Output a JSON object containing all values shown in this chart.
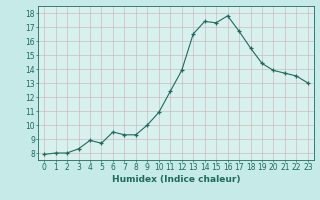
{
  "x": [
    0,
    1,
    2,
    3,
    4,
    5,
    6,
    7,
    8,
    9,
    10,
    11,
    12,
    13,
    14,
    15,
    16,
    17,
    18,
    19,
    20,
    21,
    22,
    23
  ],
  "y": [
    7.9,
    8.0,
    8.0,
    8.3,
    8.9,
    8.7,
    9.5,
    9.3,
    9.3,
    10.0,
    10.9,
    12.4,
    13.9,
    16.5,
    17.4,
    17.3,
    17.8,
    16.7,
    15.5,
    14.4,
    13.9,
    13.7,
    13.5,
    13.0
  ],
  "xlabel": "Humidex (Indice chaleur)",
  "xlim": [
    -0.5,
    23.5
  ],
  "ylim": [
    7.5,
    18.5
  ],
  "yticks": [
    8,
    9,
    10,
    11,
    12,
    13,
    14,
    15,
    16,
    17,
    18
  ],
  "xticks": [
    0,
    1,
    2,
    3,
    4,
    5,
    6,
    7,
    8,
    9,
    10,
    11,
    12,
    13,
    14,
    15,
    16,
    17,
    18,
    19,
    20,
    21,
    22,
    23
  ],
  "line_color": "#1e6b5e",
  "bg_color": "#c5eae7",
  "plot_bg_color": "#d8f0ee",
  "grid_color": "#c8b0b0",
  "xlabel_fontsize": 6.5,
  "tick_fontsize": 5.5
}
